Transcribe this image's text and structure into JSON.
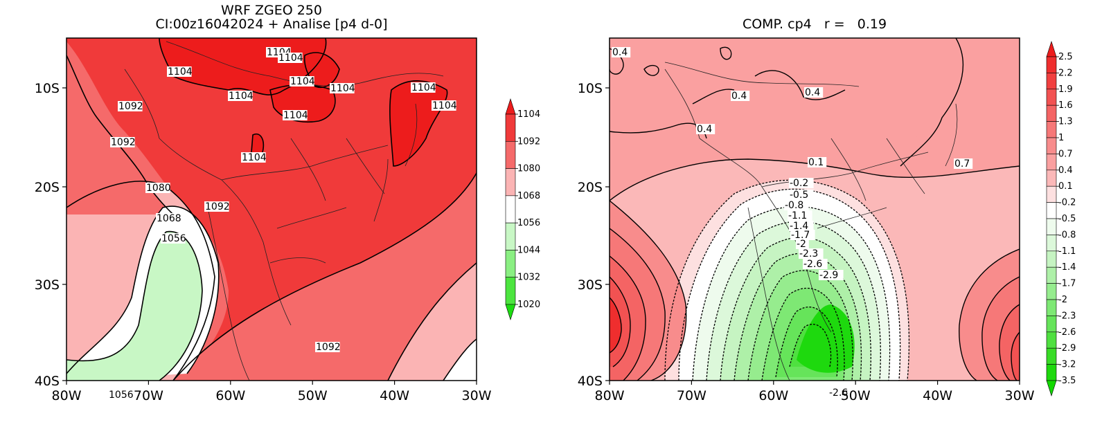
{
  "left_panel": {
    "title_line1": "WRF ZGEO 250",
    "title_line2": "CI:00z16042024 + Analise  [p4 d-0]",
    "colorbar": {
      "labels": [
        "1104",
        "1092",
        "1080",
        "1068",
        "1056",
        "1044",
        "1032",
        "1020"
      ],
      "colors": [
        "#ed1c1c",
        "#f03a3a",
        "#f56a6a",
        "#fbb4b4",
        "#ffffff",
        "#c8f7c5",
        "#8aef82",
        "#4ce53f",
        "#1ddc12"
      ]
    },
    "contour_labels": [
      {
        "text": "1104"
      },
      {
        "text": "1104"
      },
      {
        "text": "1104"
      },
      {
        "text": "1104"
      },
      {
        "text": "1104"
      },
      {
        "text": "1104"
      },
      {
        "text": "1104"
      },
      {
        "text": "1104"
      },
      {
        "text": "1104"
      },
      {
        "text": "1104"
      },
      {
        "text": "1092"
      },
      {
        "text": "1092"
      },
      {
        "text": "1092"
      },
      {
        "text": "1092"
      },
      {
        "text": "1080"
      },
      {
        "text": "1068"
      },
      {
        "text": "1056"
      },
      {
        "text": "1056"
      }
    ]
  },
  "right_panel": {
    "title": "COMP. cp4   r =   0.19",
    "colorbar": {
      "labels": [
        "2.5",
        "2.2",
        "1.9",
        "1.6",
        "1.3",
        "1",
        "0.7",
        "0.4",
        "0.1",
        "-0.2",
        "-0.5",
        "-0.8",
        "-1.1",
        "-1.4",
        "-1.7",
        "-2",
        "-2.3",
        "-2.6",
        "-2.9",
        "-3.2",
        "-3.5"
      ],
      "colors": [
        "#ed1c1c",
        "#ef2e2e",
        "#f14040",
        "#f25252",
        "#f46464",
        "#f67878",
        "#f88c8c",
        "#faa0a0",
        "#fbb8b8",
        "#fde0e0",
        "#ffffff",
        "#eefbed",
        "#dcf8da",
        "#c6f4c2",
        "#aef0a8",
        "#96ec8e",
        "#7ee874",
        "#66e45a",
        "#4fe040",
        "#38dc26",
        "#1ed90e",
        "#12d800"
      ]
    },
    "contour_labels": [
      {
        "text": "0.4"
      },
      {
        "text": "0.4"
      },
      {
        "text": "0.4"
      },
      {
        "text": "0.4"
      },
      {
        "text": "0.1"
      },
      {
        "text": "0.7"
      },
      {
        "text": "-0.2"
      },
      {
        "text": "-0.5"
      },
      {
        "text": "-0.8"
      },
      {
        "text": "-1.1"
      },
      {
        "text": "-1.4"
      },
      {
        "text": "-1.7"
      },
      {
        "text": "-2"
      },
      {
        "text": "-2.3"
      },
      {
        "text": "-2.6"
      },
      {
        "text": "-2.9"
      },
      {
        "text": "-2.6"
      }
    ]
  },
  "axes": {
    "x_ticks": [
      "80W",
      "70W",
      "60W",
      "50W",
      "40W",
      "30W"
    ],
    "y_ticks": [
      "10S",
      "20S",
      "30S",
      "40S"
    ]
  }
}
